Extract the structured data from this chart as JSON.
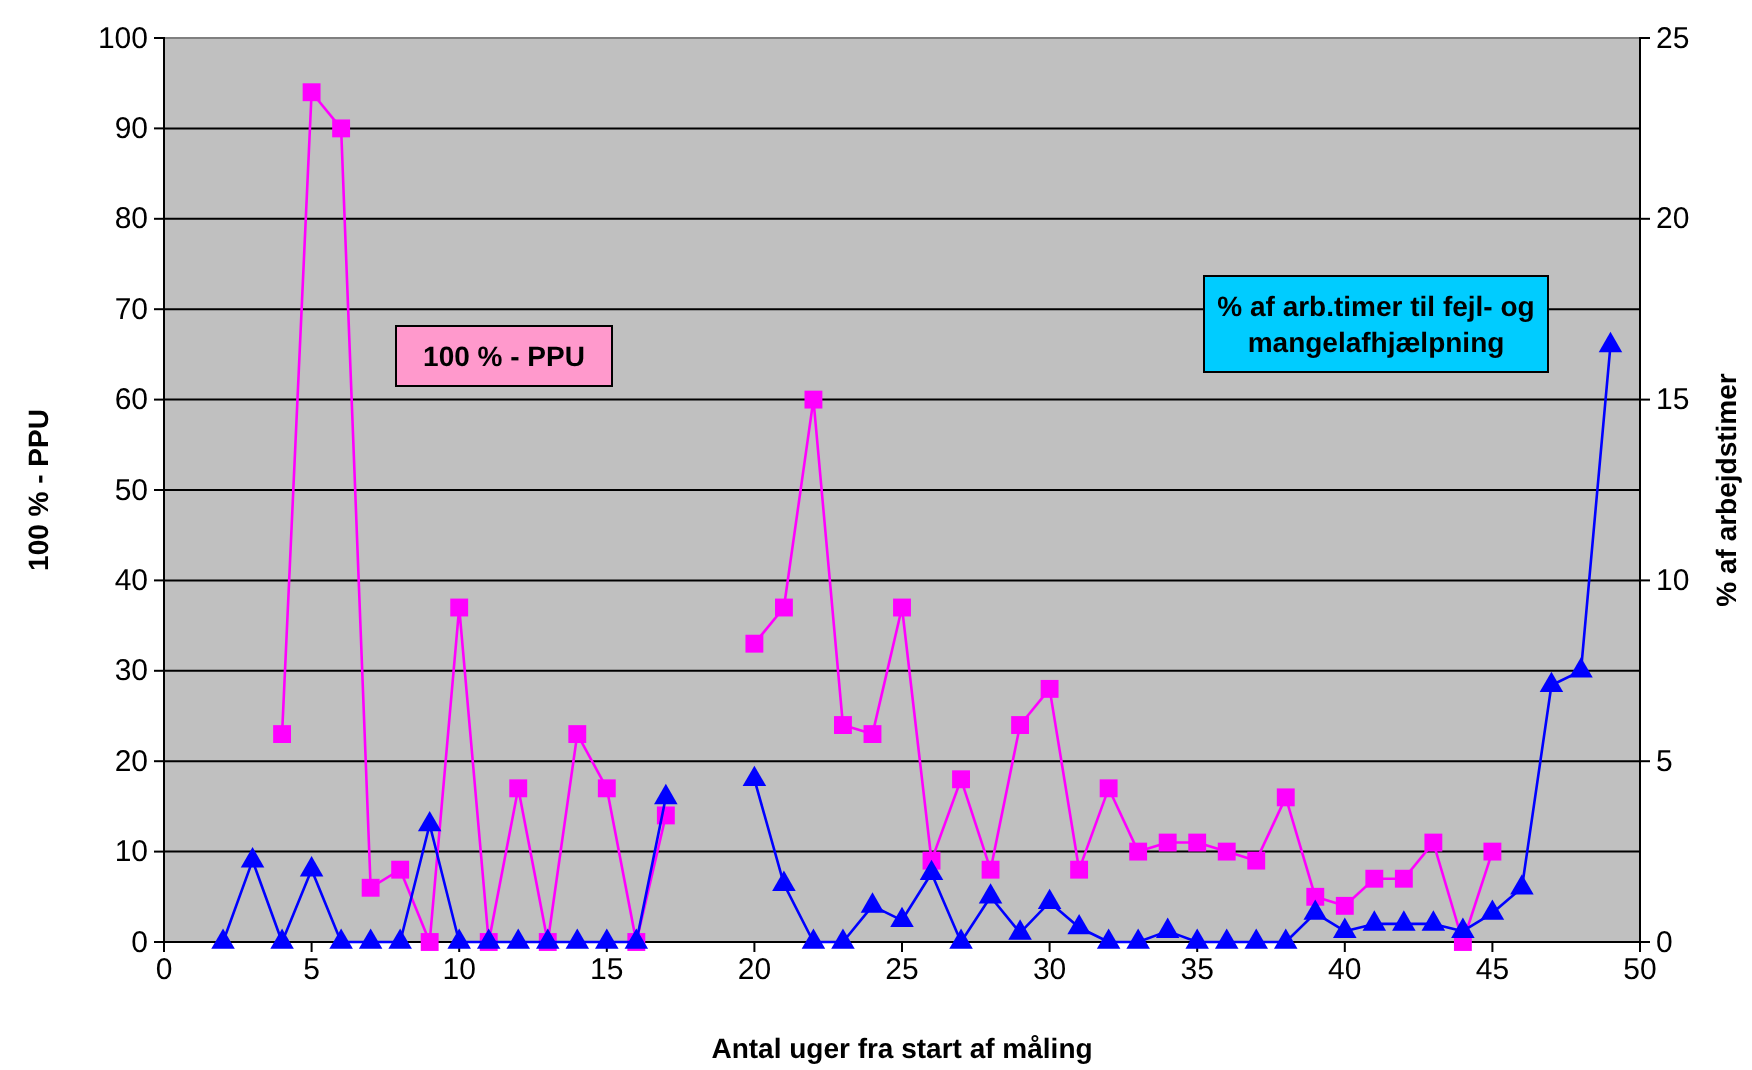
{
  "chart_data": {
    "type": "line",
    "xlabel": "Antal uger fra start af måling",
    "ylabel": "100 % -  PPU",
    "y2label": "% af arbejdstimer",
    "x": [
      2,
      3,
      4,
      5,
      6,
      7,
      8,
      9,
      10,
      11,
      12,
      13,
      14,
      15,
      16,
      17,
      18,
      19,
      20,
      21,
      22,
      23,
      24,
      25,
      26,
      27,
      28,
      29,
      30,
      31,
      32,
      33,
      34,
      35,
      36,
      37,
      38,
      39,
      40,
      41,
      42,
      43,
      44,
      45,
      46,
      47,
      48,
      49
    ],
    "series": [
      {
        "name": "100 % - PPU",
        "color": "#ff00ff",
        "marker": "square",
        "values": [
          null,
          null,
          23,
          94,
          90,
          6,
          8,
          0,
          37,
          0,
          17,
          0,
          23,
          17,
          0,
          14,
          null,
          null,
          33,
          37,
          60,
          24,
          23,
          37,
          9,
          18,
          8,
          24,
          28,
          8,
          17,
          10,
          11,
          11,
          10,
          9,
          16,
          5,
          4,
          7,
          7,
          11,
          0,
          10,
          null,
          null,
          null,
          null
        ]
      },
      {
        "name": "% af arb.timer til fejl- og mangelafhjælpning",
        "color": "#0000ff",
        "marker": "triangle",
        "axis": "y2",
        "values": [
          0,
          2.25,
          0,
          2,
          0,
          0,
          0,
          3.25,
          0,
          0,
          0,
          0,
          0,
          0,
          0,
          4,
          null,
          null,
          4.5,
          1.6,
          0,
          0,
          1,
          0.6,
          1.9,
          0,
          1.25,
          0.25,
          1.1,
          0.4,
          0,
          0,
          0.3,
          0,
          0,
          0,
          0,
          0.8,
          0.3,
          0.5,
          0.5,
          0.5,
          0.3,
          0.8,
          1.5,
          7.1,
          7.5,
          16.5
        ]
      }
    ],
    "xlim": [
      0,
      50
    ],
    "xticks": [
      0,
      5,
      10,
      15,
      20,
      25,
      30,
      35,
      40,
      45,
      50
    ],
    "ylim": [
      0,
      100
    ],
    "yticks": [
      0,
      10,
      20,
      30,
      40,
      50,
      60,
      70,
      80,
      90,
      100
    ],
    "y2lim": [
      0,
      25
    ],
    "y2ticks": [
      0,
      5,
      10,
      15,
      20,
      25
    ],
    "grid": "y",
    "legend": false,
    "line_style": "solid"
  }
}
